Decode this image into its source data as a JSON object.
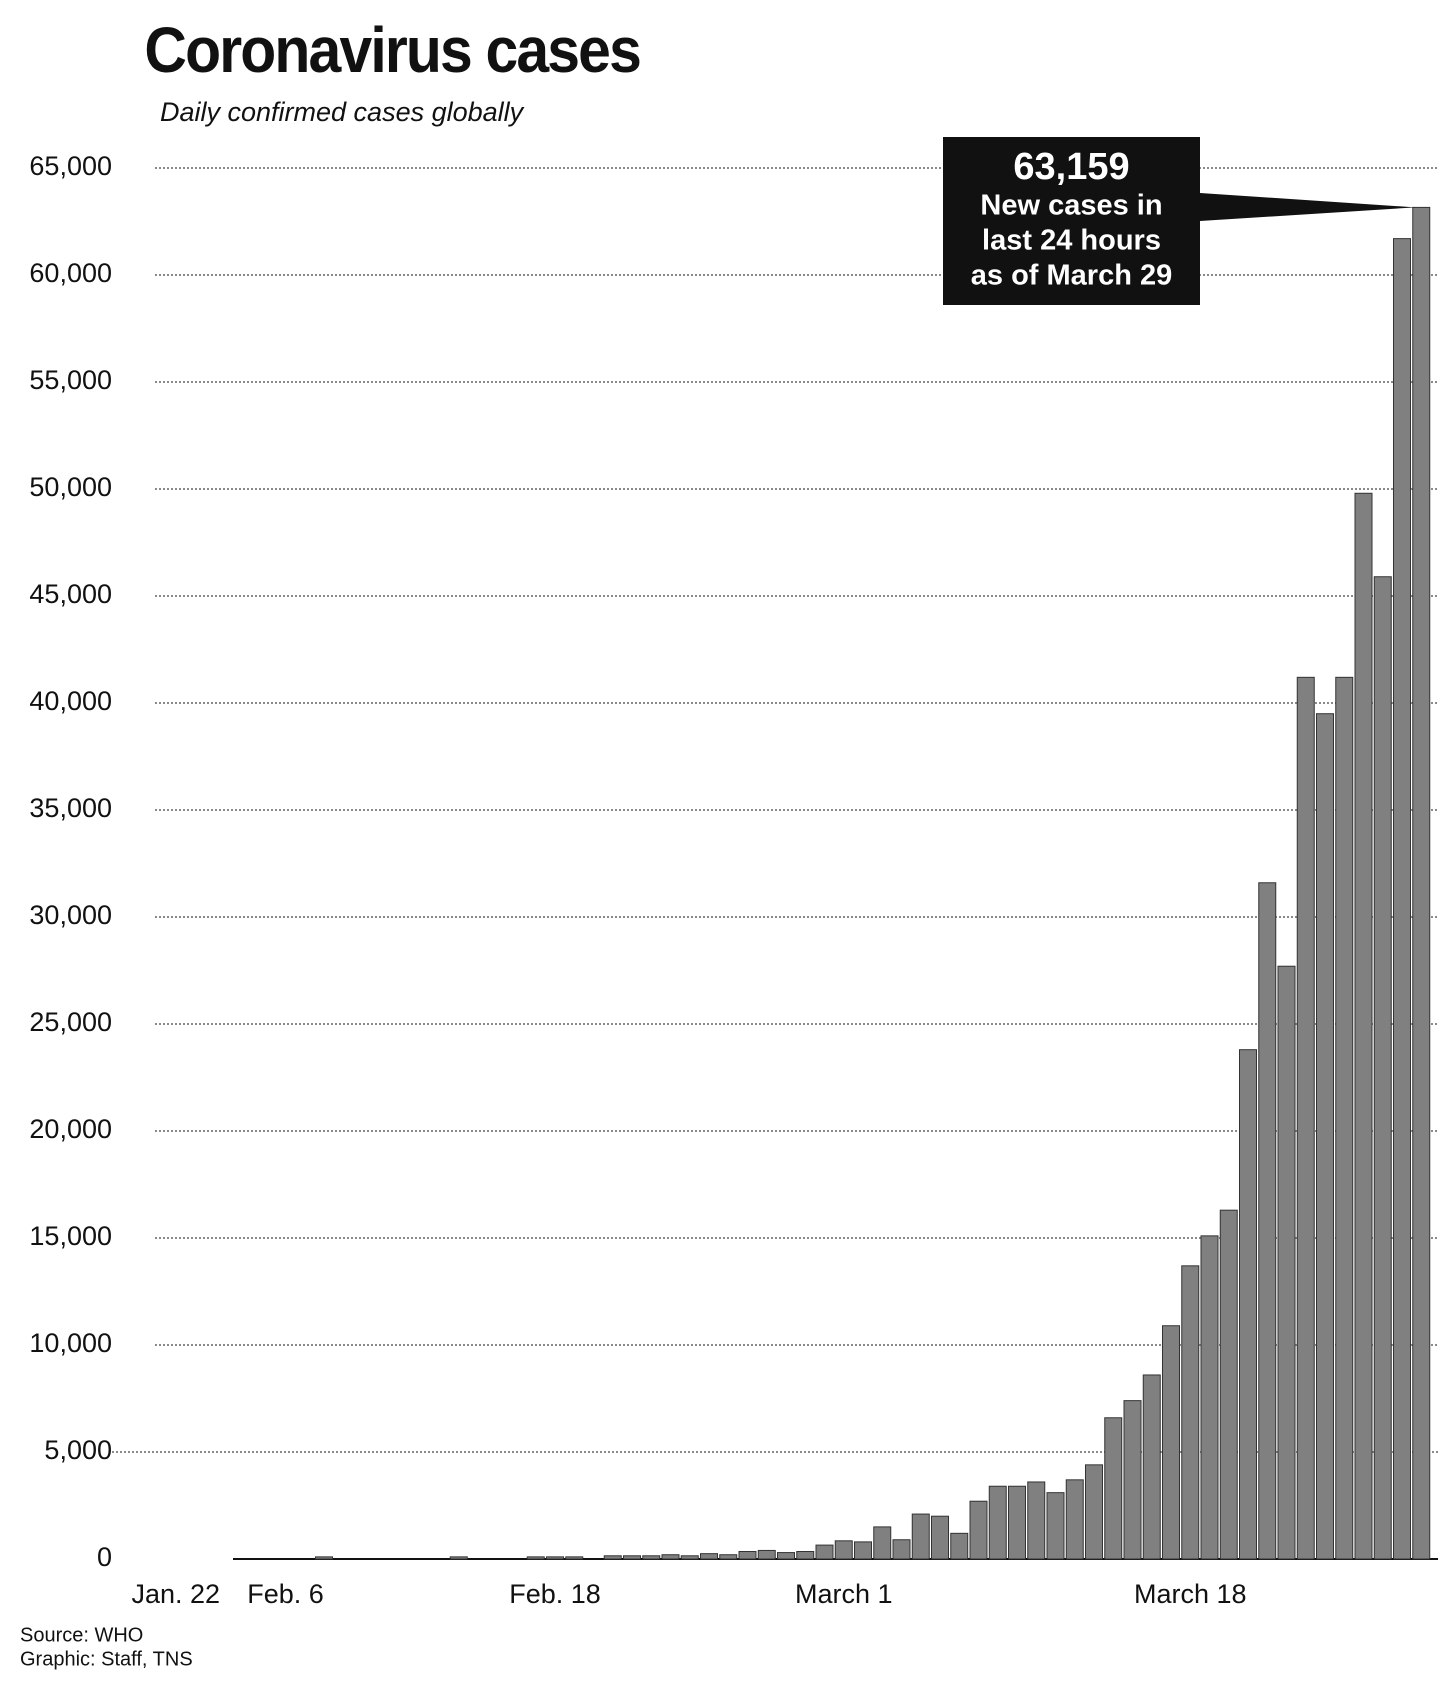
{
  "chart_data": {
    "type": "bar",
    "title": "Coronavirus cases",
    "subtitle": "Daily confirmed cases globally",
    "categories": [
      "Jan. 22",
      null,
      null,
      null,
      null,
      null,
      null,
      null,
      "Feb. 6",
      null,
      null,
      null,
      null,
      null,
      null,
      null,
      null,
      null,
      null,
      null,
      null,
      null,
      "Feb. 18",
      null,
      null,
      null,
      null,
      null,
      null,
      null,
      null,
      null,
      null,
      null,
      null,
      null,
      null,
      "March 1",
      null,
      null,
      null,
      null,
      null,
      null,
      null,
      null,
      null,
      null,
      null,
      null,
      null,
      null,
      null,
      null,
      null,
      "March 18",
      null,
      null,
      null,
      null,
      null,
      null,
      null,
      null,
      null,
      null,
      null,
      null
    ],
    "values": [
      0,
      0,
      0,
      0,
      0,
      0,
      0,
      0,
      0,
      0,
      100,
      0,
      0,
      0,
      0,
      0,
      0,
      100,
      0,
      0,
      0,
      100,
      100,
      100,
      0,
      150,
      150,
      150,
      200,
      150,
      250,
      200,
      350,
      400,
      300,
      350,
      650,
      850,
      800,
      1500,
      900,
      2100,
      2000,
      1200,
      2700,
      3400,
      3400,
      3600,
      3100,
      3700,
      4400,
      6600,
      7400,
      8600,
      10900,
      13700,
      15100,
      16300,
      23800,
      31600,
      27700,
      41200,
      39500,
      41200,
      49800,
      45900,
      61700,
      63159
    ],
    "value_labels": [
      null,
      null,
      null,
      null,
      null,
      null,
      null,
      null,
      null,
      null,
      null,
      null,
      null,
      null,
      null,
      null,
      null,
      null,
      null,
      null,
      null,
      null,
      null,
      null,
      null,
      null,
      null,
      null,
      null,
      null,
      null,
      null,
      null,
      null,
      null,
      null,
      null,
      null,
      null,
      null,
      null,
      null,
      null,
      null,
      null,
      null,
      null,
      null,
      null,
      null,
      null,
      null,
      null,
      null,
      null,
      null,
      null,
      null,
      null,
      null,
      null,
      null,
      null,
      null,
      null,
      null,
      null,
      "63,159"
    ],
    "annotation": [
      "New cases in",
      "last 24 hours",
      "as of March 29"
    ],
    "color": "#808080",
    "ylim": [
      0,
      65000
    ],
    "yticks": [
      0,
      {
        "value": 5000,
        "label": "5,000"
      },
      {
        "value": 10000,
        "label": "10,000"
      },
      {
        "value": 15000,
        "label": "15,000"
      },
      {
        "value": 20000,
        "label": "20,000"
      },
      {
        "value": 25000,
        "label": "25,000"
      },
      {
        "value": 30000,
        "label": "30,000"
      },
      {
        "value": 35000,
        "label": "35,000"
      },
      {
        "value": 40000,
        "label": "40,000"
      },
      {
        "value": 45000,
        "label": "45,000"
      },
      {
        "value": 50000,
        "label": "50,000"
      },
      {
        "value": 55000,
        "label": "55,000"
      },
      {
        "value": 60000,
        "label": "60,000"
      },
      {
        "value": 65000,
        "label": "65,000"
      }
    ],
    "grid": true,
    "source": [
      "Source: WHO",
      "Graphic: Staff, TNS"
    ]
  }
}
